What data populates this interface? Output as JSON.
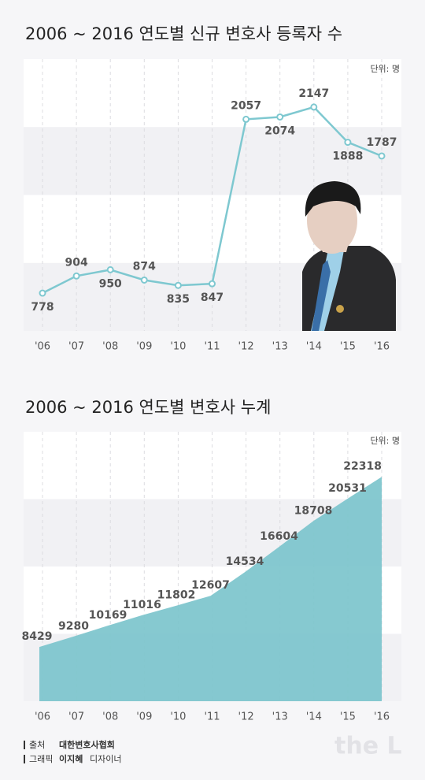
{
  "chart_data": [
    {
      "type": "line",
      "title": "2006 ~ 2016 연도별 신규 변호사 등록자 수",
      "unit": "단위: 명",
      "categories": [
        "'06",
        "'07",
        "'08",
        "'09",
        "'10",
        "'11",
        "'12",
        "'13",
        "'14",
        "'15",
        "'16"
      ],
      "values": [
        778,
        904,
        950,
        874,
        835,
        847,
        2057,
        2074,
        2147,
        1888,
        1787
      ],
      "color": "#7ec8d0",
      "ylim": [
        500,
        2500
      ]
    },
    {
      "type": "area",
      "title": "2006 ~ 2016 연도별 변호사 누계",
      "unit": "단위: 명",
      "categories": [
        "'06",
        "'07",
        "'08",
        "'09",
        "'10",
        "'11",
        "'12",
        "'13",
        "'14",
        "'15",
        "'16"
      ],
      "values": [
        8429,
        9280,
        10169,
        11016,
        11802,
        12607,
        14534,
        16604,
        18708,
        20531,
        22318
      ],
      "color": "#7cc4cc",
      "ylim": [
        4000,
        26000
      ]
    }
  ],
  "footer": {
    "source_label": "출처",
    "source": "대한변호사협회",
    "graphic_label": "그래픽",
    "designer": "이지혜",
    "designer_role": "디자이너",
    "logo": "the L"
  }
}
